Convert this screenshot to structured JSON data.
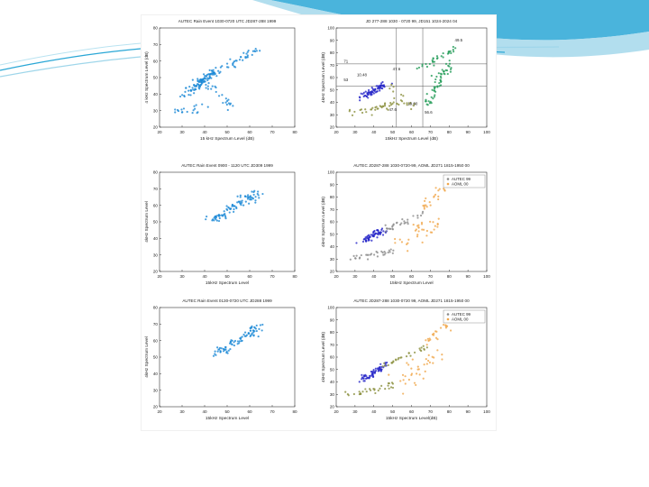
{
  "colors": {
    "slide_accent": "#2aa7d6",
    "slide_accent_light": "#9fd6ea",
    "autec_blue": "#1a88d6",
    "dark_blue": "#2626c8",
    "olive": "#8a8f3c",
    "green": "#1f9a55",
    "orange": "#f0a64a",
    "gray": "#8a8a8a"
  },
  "chart_data": [
    {
      "id": "a",
      "type": "scatter",
      "title": "AUTEC Rain Event 1030-0720 UTC JD287-288 1999",
      "xlabel": "15 kHz Spectrum Level (dB)",
      "ylabel": "4 kHz Spectrum Level (dB)",
      "xlim": [
        20,
        80
      ],
      "ylim": [
        20,
        80
      ],
      "xticks": [
        "20",
        "30",
        "40",
        "50",
        "60",
        "70",
        "80"
      ],
      "yticks": [
        "20",
        "30",
        "40",
        "50",
        "60",
        "70",
        "80"
      ],
      "grid": false,
      "legend": null,
      "annotations": [],
      "series": [
        {
          "color": "#1a88d6",
          "clusters": [
            {
              "x0": 34,
              "y0": 43,
              "x1": 44,
              "y1": 53,
              "n": 85,
              "spread": 1.3
            },
            {
              "x0": 44,
              "y0": 52,
              "x1": 63,
              "y1": 67,
              "n": 40,
              "spread": 1.1
            },
            {
              "x0": 40,
              "y0": 47,
              "x1": 52,
              "y1": 33,
              "n": 25,
              "spread": 1.5
            },
            {
              "x0": 26,
              "y0": 29,
              "x1": 40,
              "y1": 32,
              "n": 18,
              "spread": 1.2
            },
            {
              "x0": 30,
              "y0": 38,
              "x1": 34,
              "y1": 42,
              "n": 8,
              "spread": 1.0
            }
          ]
        }
      ]
    },
    {
      "id": "b",
      "type": "scatter",
      "title": "JD 277-288 1030 - 0720 99, JD151 1024-2024 04",
      "xlabel": "15kHz Spectrum Level (dB)",
      "ylabel": "4kHz Spectrum Level (dB)",
      "xlim": [
        20,
        100
      ],
      "ylim": [
        20,
        100
      ],
      "xticks": [
        "20",
        "30",
        "40",
        "50",
        "60",
        "70",
        "80",
        "90",
        "100"
      ],
      "yticks": [
        "20",
        "30",
        "40",
        "50",
        "60",
        "70",
        "80",
        "90",
        "100"
      ],
      "grid": false,
      "legend": null,
      "annotations": [
        {
          "text": "49.5",
          "x": 83,
          "y": 89
        },
        {
          "text": "47.6",
          "x": 50,
          "y": 66
        },
        {
          "text": "10.48",
          "x": 31,
          "y": 61
        },
        {
          "text": "53",
          "x": 24,
          "y": 57
        },
        {
          "text": "71",
          "x": 24,
          "y": 72
        },
        {
          "text": "19.60",
          "x": 58,
          "y": 38
        },
        {
          "text": "47.6",
          "x": 48,
          "y": 33
        },
        {
          "text": "56.6",
          "x": 67,
          "y": 31
        }
      ],
      "refs": [
        {
          "x": 52,
          "y": 71
        },
        {
          "x": 66,
          "y": 53
        }
      ],
      "series": [
        {
          "color": "#2626c8",
          "clusters": [
            {
              "x0": 34,
              "y0": 44,
              "x1": 46,
              "y1": 55,
              "n": 70,
              "spread": 1.2
            }
          ]
        },
        {
          "color": "#8a8f3c",
          "clusters": [
            {
              "x0": 28,
              "y0": 31,
              "x1": 52,
              "y1": 39,
              "n": 35,
              "spread": 1.6
            },
            {
              "x0": 48,
              "y0": 53,
              "x1": 60,
              "y1": 37,
              "n": 18,
              "spread": 1.5
            }
          ]
        },
        {
          "color": "#1f9a55",
          "clusters": [
            {
              "x0": 68,
              "y0": 38,
              "x1": 80,
              "y1": 71,
              "n": 55,
              "spread": 1.6
            },
            {
              "x0": 62,
              "y0": 66,
              "x1": 84,
              "y1": 84,
              "n": 30,
              "spread": 1.3
            }
          ]
        }
      ]
    },
    {
      "id": "c",
      "type": "scatter",
      "title": "AUTEC Rain Event 0900 - 1120 UTC JD309 1999",
      "xlabel": "15kHz Spectrum Level",
      "ylabel": "4kHz Spectrum Level",
      "xlim": [
        20,
        80
      ],
      "ylim": [
        20,
        80
      ],
      "xticks": [
        "20",
        "30",
        "40",
        "50",
        "60",
        "70",
        "80"
      ],
      "yticks": [
        "20",
        "30",
        "40",
        "50",
        "60",
        "70",
        "80"
      ],
      "grid": false,
      "legend": null,
      "annotations": [],
      "series": [
        {
          "color": "#1a88d6",
          "clusters": [
            {
              "x0": 42,
              "y0": 50,
              "x1": 64,
              "y1": 68,
              "n": 90,
              "spread": 1.4
            }
          ]
        }
      ]
    },
    {
      "id": "d",
      "type": "scatter",
      "title": "AUTEC JD287-288 1030-0720-99, AOML JD271 1815-1950 00",
      "xlabel": "15kHz Spectrum Level",
      "ylabel": "4kHz Spectrum Level (dB)",
      "xlim": [
        20,
        100
      ],
      "ylim": [
        20,
        100
      ],
      "xticks": [
        "20",
        "30",
        "40",
        "50",
        "60",
        "70",
        "80",
        "90",
        "100"
      ],
      "yticks": [
        "20",
        "30",
        "40",
        "50",
        "60",
        "70",
        "80",
        "90",
        "100"
      ],
      "grid": false,
      "legend": {
        "position": "top-right",
        "entries": [
          {
            "label": "AUTEC 99",
            "color": "#8a8a8a"
          },
          {
            "label": "AOML 00",
            "color": "#f0a64a"
          }
        ]
      },
      "annotations": [],
      "series": [
        {
          "color": "#2626c8",
          "clusters": [
            {
              "x0": 34,
              "y0": 44,
              "x1": 46,
              "y1": 54,
              "n": 60,
              "spread": 1.2
            }
          ]
        },
        {
          "color": "#8a8a8a",
          "clusters": [
            {
              "x0": 28,
              "y0": 30,
              "x1": 52,
              "y1": 38,
              "n": 30,
              "spread": 1.5
            },
            {
              "x0": 46,
              "y0": 53,
              "x1": 66,
              "y1": 67,
              "n": 30,
              "spread": 1.1
            }
          ]
        },
        {
          "color": "#f0a64a",
          "clusters": [
            {
              "x0": 52,
              "y0": 40,
              "x1": 74,
              "y1": 60,
              "n": 35,
              "spread": 3.5
            },
            {
              "x0": 66,
              "y0": 70,
              "x1": 78,
              "y1": 88,
              "n": 22,
              "spread": 1.8
            }
          ]
        }
      ]
    },
    {
      "id": "e",
      "type": "scatter",
      "title": "AUTEC Rain Event 0130-0720 UTC JD288 1999",
      "xlabel": "15kHz Spectrum Level",
      "ylabel": "4kHz Spectrum Level",
      "xlim": [
        20,
        80
      ],
      "ylim": [
        20,
        80
      ],
      "xticks": [
        "20",
        "30",
        "40",
        "50",
        "60",
        "70",
        "80"
      ],
      "yticks": [
        "20",
        "30",
        "40",
        "50",
        "60",
        "70",
        "80"
      ],
      "grid": false,
      "legend": null,
      "annotations": [],
      "series": [
        {
          "color": "#1a88d6",
          "clusters": [
            {
              "x0": 44,
              "y0": 51,
              "x1": 65,
              "y1": 69,
              "n": 80,
              "spread": 1.6
            }
          ]
        }
      ]
    },
    {
      "id": "f",
      "type": "scatter",
      "title": "AUTEC JD287-288 1030-0720 99, AOML JD271 1815-1950 00",
      "xlabel": "15kHz Spectrum Level(dB)",
      "ylabel": "4kHz Spectrum Level (dB)",
      "xlim": [
        20,
        100
      ],
      "ylim": [
        20,
        100
      ],
      "xticks": [
        "20",
        "30",
        "40",
        "50",
        "60",
        "70",
        "80",
        "90",
        "100"
      ],
      "yticks": [
        "20",
        "30",
        "40",
        "50",
        "60",
        "70",
        "80",
        "90",
        "100"
      ],
      "grid": false,
      "legend": {
        "position": "top-right",
        "entries": [
          {
            "label": "AUTEC 99",
            "color": "#8a8a8a"
          },
          {
            "label": "AOML 00",
            "color": "#f0a64a"
          }
        ]
      },
      "annotations": [],
      "series": [
        {
          "color": "#2626c8",
          "clusters": [
            {
              "x0": 34,
              "y0": 42,
              "x1": 46,
              "y1": 54,
              "n": 60,
              "spread": 1.2
            }
          ]
        },
        {
          "color": "#8a8f3c",
          "clusters": [
            {
              "x0": 26,
              "y0": 30,
              "x1": 52,
              "y1": 38,
              "n": 30,
              "spread": 1.6
            },
            {
              "x0": 44,
              "y0": 52,
              "x1": 68,
              "y1": 68,
              "n": 28,
              "spread": 1.2
            }
          ]
        },
        {
          "color": "#f0a64a",
          "clusters": [
            {
              "x0": 54,
              "y0": 40,
              "x1": 72,
              "y1": 60,
              "n": 35,
              "spread": 3.5
            },
            {
              "x0": 68,
              "y0": 70,
              "x1": 80,
              "y1": 88,
              "n": 22,
              "spread": 1.8
            }
          ]
        }
      ]
    }
  ]
}
